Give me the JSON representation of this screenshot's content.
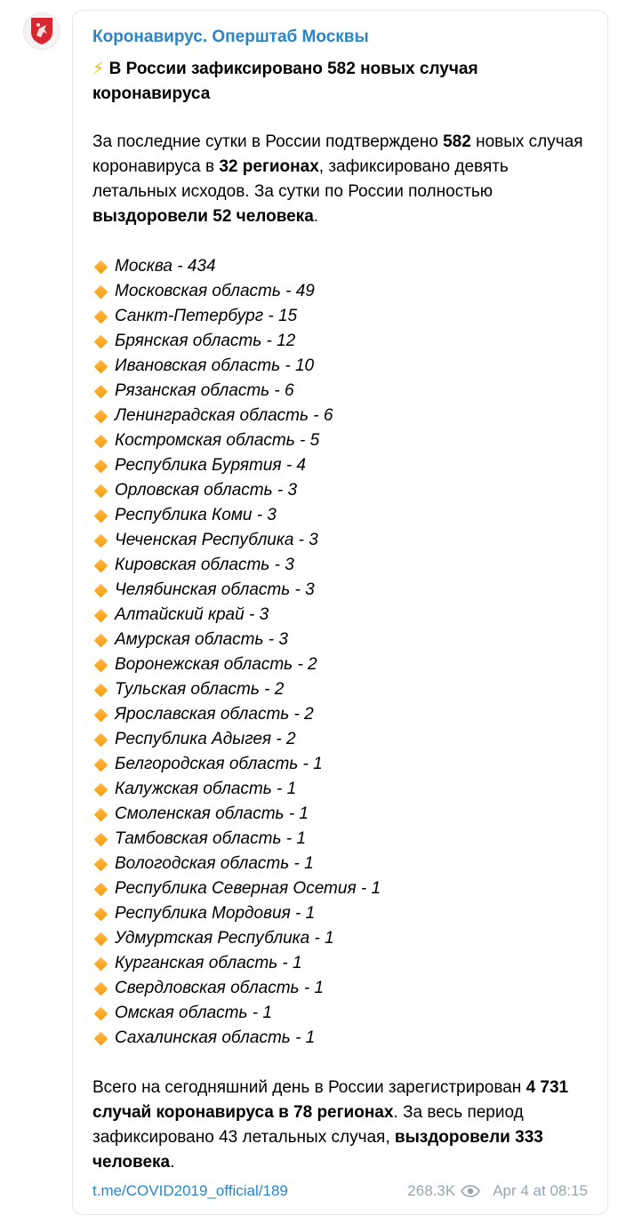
{
  "channel": {
    "name": "Коронавирус. Оперштаб Москвы"
  },
  "post": {
    "headline_icon": "⚡",
    "headline": "В России зафиксировано 582 новых случая коронавируса",
    "intro": {
      "t1": "За последние сутки в России подтверждено ",
      "b1": "582",
      "t2": " новых случая коронавируса в ",
      "b2": "32 регионах",
      "t3": ", зафиксировано девять летальных исходов. За сутки по России полностью ",
      "b3": "выздоровели 52 человека",
      "t4": "."
    },
    "bullet_icon": "orange-diamond-icon",
    "regions": [
      "Москва - 434",
      "Московская область - 49",
      "Санкт-Петербург - 15",
      "Брянская область - 12",
      "Ивановская область - 10",
      "Рязанская область - 6",
      "Ленинградская область - 6",
      "Костромская область - 5",
      "Республика Бурятия - 4",
      "Орловская область - 3",
      "Республика Коми - 3",
      "Чеченская Республика - 3",
      "Кировская область - 3",
      "Челябинская область - 3",
      "Алтайский край - 3",
      "Амурская область - 3",
      "Воронежская область - 2",
      "Тульская область - 2",
      "Ярославская область - 2",
      "Республика Адыгея - 2",
      "Белгородская область - 1",
      "Калужская область - 1",
      "Смоленская область - 1",
      "Тамбовская область - 1",
      "Вологодская область - 1",
      "Республика Северная Осетия - 1",
      "Республика Мордовия - 1",
      "Удмуртская Республика - 1",
      "Курганская область - 1",
      "Свердловская область - 1",
      "Омская область - 1",
      "Сахалинская область - 1"
    ],
    "summary": {
      "t1": "Всего на сегодняшний день в России зарегистрирован ",
      "b1": "4 731 случай коронавируса в 78 регионах",
      "t2": ". За весь период зафиксировано 43 летальных случая, ",
      "b2": "выздоровели 333 человека",
      "t3": "."
    }
  },
  "footer": {
    "link": "t.me/COVID2019_official/189",
    "views": "268.3K",
    "views_icon": "eye-icon",
    "date": "Apr 4 at 08:15"
  },
  "colors": {
    "link": "#2a85c8",
    "meta": "#97a4b0",
    "bullet": "#f49b12"
  }
}
